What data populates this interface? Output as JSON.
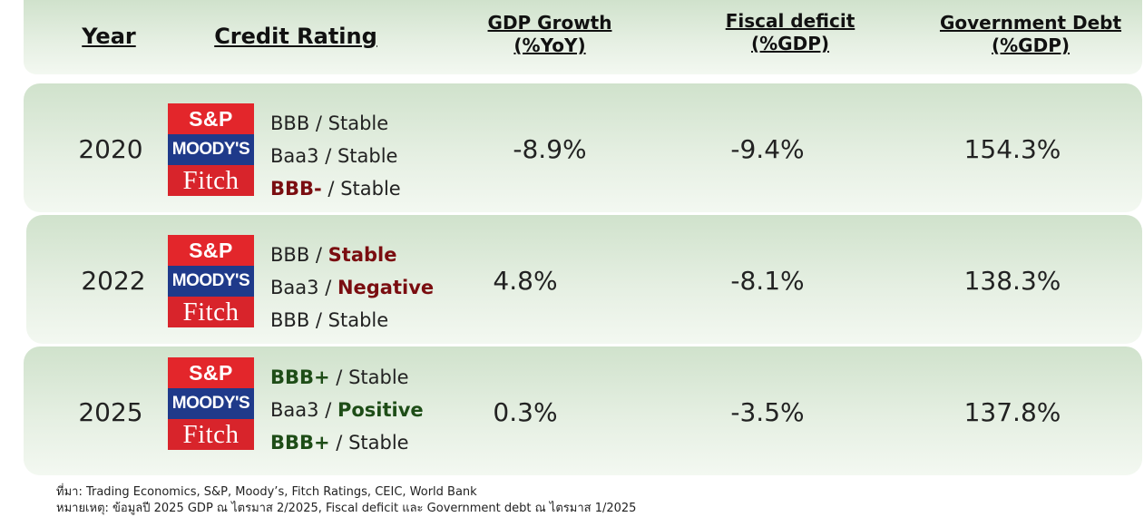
{
  "header": {
    "year": "Year",
    "credit_rating": "Credit Rating",
    "gdp_line1": "GDP Growth",
    "gdp_line2": "(%YoY)",
    "fiscal_line1": "Fiscal deficit",
    "fiscal_line2": "(%GDP)",
    "debt_line1": "Government Debt",
    "debt_line2": "(%GDP)"
  },
  "logos": {
    "sp": "S&P",
    "moodys": "MOODY'S",
    "fitch": "Fitch",
    "sp_color": "#e3262b",
    "moodys_color": "#1f3a8a",
    "fitch_color": "#d8242b"
  },
  "rows": [
    {
      "year": "2020",
      "gdp": "-8.9%",
      "fiscal": "-9.4%",
      "debt": "154.3%",
      "sp": {
        "grade": "BBB",
        "outlook": "Stable"
      },
      "moodys": {
        "grade": "Baa3",
        "outlook": "Stable"
      },
      "fitch": {
        "grade": "BBB-",
        "outlook": "Stable"
      }
    },
    {
      "year": "2022",
      "gdp": "4.8%",
      "fiscal": "-8.1%",
      "debt": "138.3%",
      "sp": {
        "grade": "BBB",
        "outlook": "Stable"
      },
      "moodys": {
        "grade": "Baa3",
        "outlook": "Negative"
      },
      "fitch": {
        "grade": "BBB",
        "outlook": "Stable"
      }
    },
    {
      "year": "2025",
      "gdp": "0.3%",
      "fiscal": "-3.5%",
      "debt": "137.8%",
      "sp": {
        "grade": "BBB+",
        "outlook": "Stable"
      },
      "moodys": {
        "grade": "Baa3",
        "outlook": "Positive"
      },
      "fitch": {
        "grade": "BBB+",
        "outlook": "Stable"
      }
    }
  ],
  "separator": " / ",
  "colors": {
    "downgrade": "#7a0d10",
    "upgrade": "#1e4d17"
  },
  "notes": {
    "source": "ที่มา: Trading Economics, S&P, Moody’s, Fitch Ratings, CEIC, World Bank",
    "remark": "หมายเหตุ: ข้อมูลปี 2025  GDP ณ ไตรมาส 2/2025,  Fiscal deficit และ  Government debt ณ ไตรมาส 1/2025"
  }
}
